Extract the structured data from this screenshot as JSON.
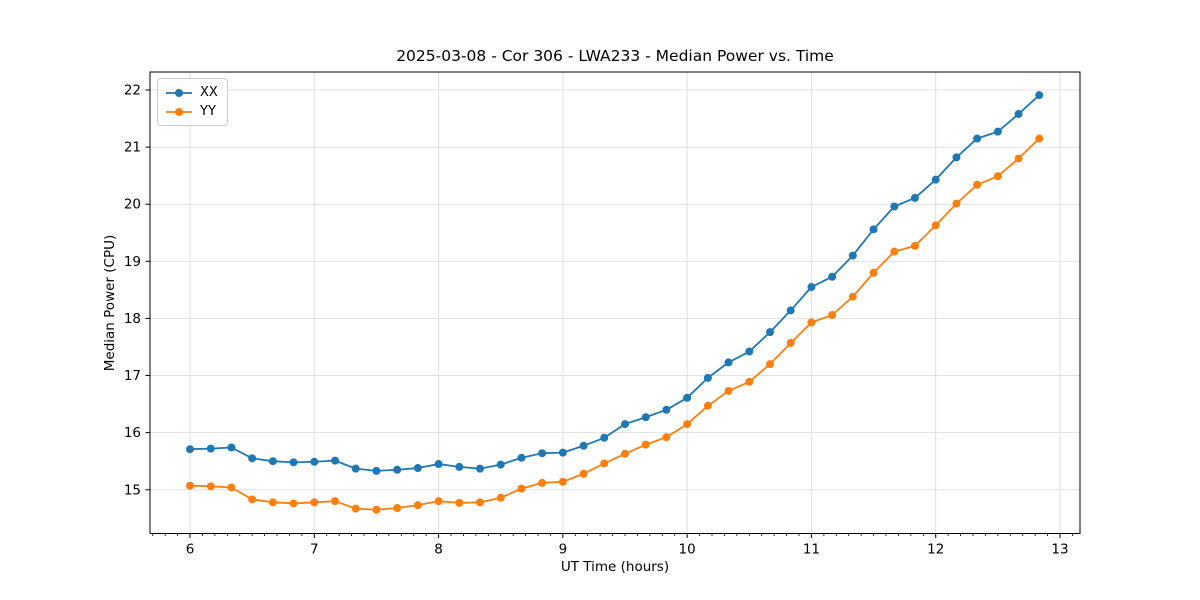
{
  "chart_data": {
    "type": "line",
    "title": "2025-03-08 - Cor 306 - LWA233 - Median Power vs. Time",
    "xlabel": "UT Time (hours)",
    "ylabel": "Median Power (CPU)",
    "xlim": [
      5.678,
      13.161
    ],
    "ylim": [
      14.234,
      22.315
    ],
    "x_ticks": [
      6,
      7,
      8,
      9,
      10,
      11,
      12,
      13
    ],
    "y_ticks": [
      15,
      16,
      17,
      18,
      19,
      20,
      21,
      22
    ],
    "x_minor_step": 0.1,
    "grid": true,
    "grid_color": "#e0e0e0",
    "legend_position": "upper left",
    "x": [
      6.0,
      6.167,
      6.333,
      6.5,
      6.667,
      6.833,
      7.0,
      7.167,
      7.333,
      7.5,
      7.667,
      7.833,
      8.0,
      8.167,
      8.333,
      8.5,
      8.667,
      8.833,
      9.0,
      9.167,
      9.333,
      9.5,
      9.667,
      9.833,
      10.0,
      10.167,
      10.333,
      10.5,
      10.667,
      10.833,
      11.0,
      11.167,
      11.333,
      11.5,
      11.667,
      11.833,
      12.0,
      12.167,
      12.333,
      12.5,
      12.667,
      12.833
    ],
    "series": [
      {
        "name": "XX",
        "color": "#1f77b4",
        "values": [
          15.71,
          15.72,
          15.74,
          15.55,
          15.5,
          15.48,
          15.49,
          15.51,
          15.37,
          15.33,
          15.35,
          15.38,
          15.45,
          15.4,
          15.37,
          15.44,
          15.56,
          15.64,
          15.65,
          15.77,
          15.91,
          16.15,
          16.27,
          16.4,
          16.61,
          16.96,
          17.23,
          17.42,
          17.76,
          18.14,
          18.55,
          18.73,
          19.1,
          19.56,
          19.96,
          20.11,
          20.43,
          20.82,
          21.15,
          21.27,
          21.58,
          21.91
        ]
      },
      {
        "name": "YY",
        "color": "#ff7f0e",
        "values": [
          15.07,
          15.06,
          15.04,
          14.83,
          14.78,
          14.76,
          14.78,
          14.8,
          14.67,
          14.65,
          14.68,
          14.73,
          14.8,
          14.77,
          14.78,
          14.86,
          15.02,
          15.12,
          15.14,
          15.28,
          15.46,
          15.63,
          15.79,
          15.92,
          16.15,
          16.47,
          16.73,
          16.89,
          17.2,
          17.57,
          17.93,
          18.06,
          18.38,
          18.8,
          19.17,
          19.27,
          19.63,
          20.01,
          20.34,
          20.49,
          20.8,
          21.15
        ]
      }
    ]
  }
}
